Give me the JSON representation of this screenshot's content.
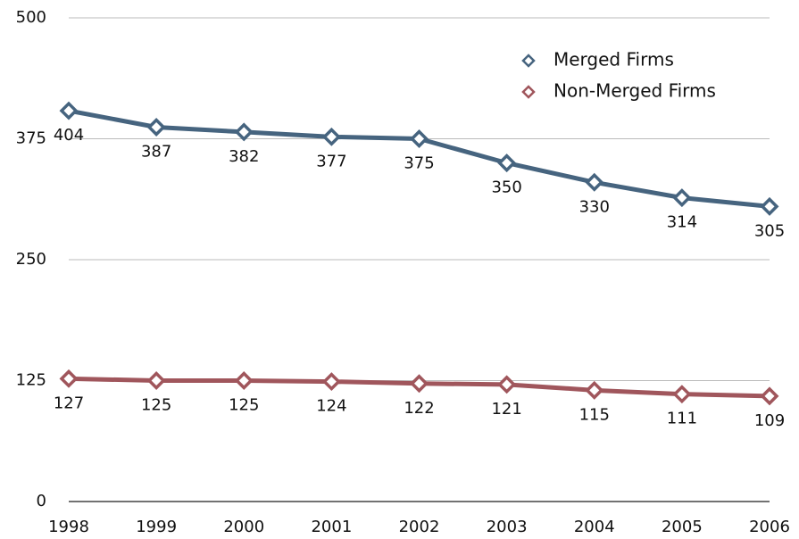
{
  "chart_data": {
    "type": "line",
    "categories": [
      "1998",
      "1999",
      "2000",
      "2001",
      "2002",
      "2003",
      "2004",
      "2005",
      "2006"
    ],
    "series": [
      {
        "name": "Merged Firms",
        "color": "#46647f",
        "values": [
          404,
          387,
          382,
          377,
          375,
          350,
          330,
          314,
          305
        ]
      },
      {
        "name": "Non-Merged Firms",
        "color": "#a0565c",
        "values": [
          127,
          125,
          125,
          124,
          122,
          121,
          115,
          111,
          109
        ]
      }
    ],
    "ylim": [
      0,
      500
    ],
    "yticks": [
      0,
      125,
      250,
      375,
      500
    ],
    "grid": true,
    "legend": "top-right"
  }
}
